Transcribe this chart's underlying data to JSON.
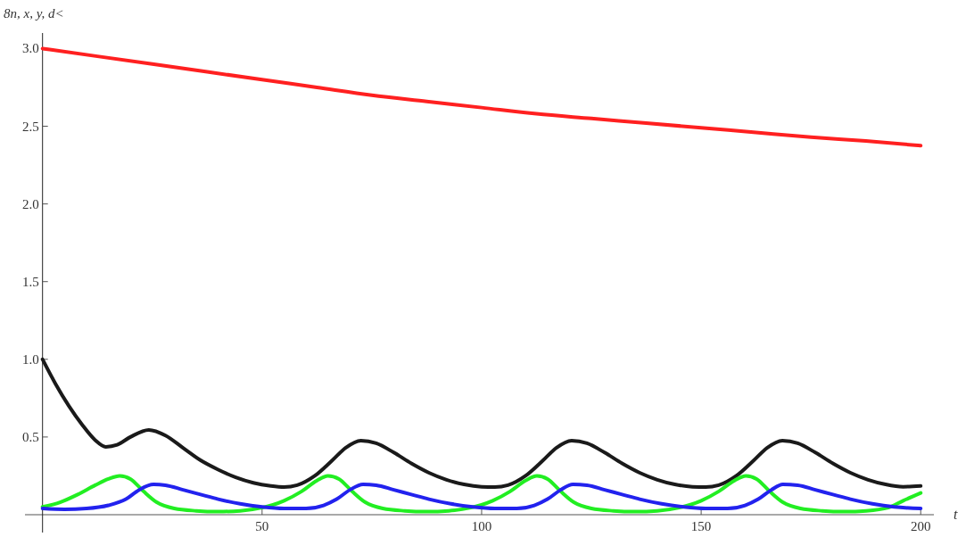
{
  "chart_data": {
    "type": "line",
    "xlabel": "t",
    "ylabel": "8n, x, y, d<",
    "xlim": [
      -4,
      203
    ],
    "ylim": [
      0,
      3.1
    ],
    "xticks": [
      50,
      100,
      150,
      200
    ],
    "yticks": [
      {
        "value": 0.5,
        "label": "0.5"
      },
      {
        "value": 1,
        "label": "1.0"
      },
      {
        "value": 1.5,
        "label": "1.5"
      },
      {
        "value": 2,
        "label": "2.0"
      },
      {
        "value": 2.5,
        "label": "2.5"
      },
      {
        "value": 3,
        "label": "3.0"
      }
    ],
    "grid": false,
    "series": [
      {
        "color": "#ff2020",
        "x": [
          0,
          12.5,
          25,
          37.5,
          50,
          62.5,
          75,
          87.5,
          100,
          112.5,
          125,
          137.5,
          150,
          162.5,
          175,
          187.5,
          200
        ],
        "values": [
          3.0,
          2.95,
          2.9,
          2.85,
          2.8,
          2.75,
          2.7,
          2.66,
          2.62,
          2.58,
          2.55,
          2.52,
          2.49,
          2.46,
          2.43,
          2.405,
          2.375
        ]
      },
      {
        "color": "#1a1a1a",
        "x": [
          0,
          3,
          6,
          9,
          12,
          14.4,
          17,
          20,
          24.2,
          28,
          32,
          36,
          40,
          44,
          48,
          52,
          55,
          58,
          62,
          66,
          69,
          72.5,
          76,
          80,
          84,
          88,
          92,
          96,
          100,
          103,
          106,
          110,
          114,
          117,
          120.5,
          124,
          128,
          132,
          136,
          140,
          144,
          148,
          151,
          154,
          158,
          162,
          165,
          168.5,
          172,
          176,
          180,
          184,
          188,
          192,
          196,
          200
        ],
        "values": [
          1.0,
          0.84,
          0.7,
          0.58,
          0.48,
          0.437,
          0.45,
          0.5,
          0.546,
          0.51,
          0.43,
          0.35,
          0.29,
          0.24,
          0.205,
          0.185,
          0.178,
          0.19,
          0.25,
          0.35,
          0.43,
          0.477,
          0.46,
          0.4,
          0.33,
          0.27,
          0.225,
          0.195,
          0.18,
          0.178,
          0.19,
          0.25,
          0.35,
          0.43,
          0.477,
          0.46,
          0.4,
          0.33,
          0.27,
          0.225,
          0.195,
          0.18,
          0.178,
          0.19,
          0.25,
          0.35,
          0.43,
          0.477,
          0.46,
          0.4,
          0.33,
          0.27,
          0.225,
          0.195,
          0.18,
          0.185
        ]
      },
      {
        "color": "#22ee22",
        "x": [
          0,
          4,
          8,
          12,
          15,
          17.6,
          20,
          23,
          26,
          30,
          35,
          40,
          45,
          50,
          55,
          59,
          62.5,
          65,
          67.5,
          70.5,
          73.5,
          77.5,
          82.5,
          87.5,
          92.5,
          97.5,
          102.5,
          106.5,
          110,
          112.6,
          115,
          118,
          121,
          125,
          130,
          135,
          140,
          145,
          150,
          154,
          157.6,
          160.2,
          162.6,
          165.6,
          168.6,
          172.6,
          177.6,
          182.6,
          187.6,
          192.6,
          196,
          200
        ],
        "values": [
          0.05,
          0.08,
          0.13,
          0.19,
          0.23,
          0.25,
          0.23,
          0.15,
          0.08,
          0.04,
          0.025,
          0.02,
          0.025,
          0.045,
          0.09,
          0.15,
          0.22,
          0.25,
          0.23,
          0.15,
          0.08,
          0.04,
          0.025,
          0.02,
          0.025,
          0.045,
          0.09,
          0.15,
          0.22,
          0.25,
          0.23,
          0.15,
          0.08,
          0.04,
          0.025,
          0.02,
          0.025,
          0.045,
          0.09,
          0.15,
          0.22,
          0.25,
          0.23,
          0.15,
          0.08,
          0.04,
          0.025,
          0.02,
          0.025,
          0.045,
          0.09,
          0.14
        ]
      },
      {
        "color": "#2222ee",
        "x": [
          0,
          5,
          10,
          15,
          19,
          22,
          25.3,
          28,
          32,
          36,
          40,
          45,
          50,
          55,
          60,
          64,
          67,
          70,
          73,
          76,
          80,
          84,
          88,
          93,
          98,
          103,
          108,
          112,
          115,
          118,
          120.8,
          124,
          128,
          132,
          136,
          141,
          146,
          151,
          156,
          160,
          163,
          166,
          168.6,
          172,
          176,
          180,
          184,
          189,
          194,
          200
        ],
        "values": [
          0.04,
          0.035,
          0.04,
          0.06,
          0.1,
          0.16,
          0.195,
          0.19,
          0.16,
          0.13,
          0.1,
          0.07,
          0.05,
          0.04,
          0.04,
          0.06,
          0.1,
          0.16,
          0.195,
          0.19,
          0.16,
          0.13,
          0.1,
          0.07,
          0.05,
          0.04,
          0.04,
          0.06,
          0.1,
          0.16,
          0.195,
          0.19,
          0.16,
          0.13,
          0.1,
          0.07,
          0.05,
          0.04,
          0.04,
          0.06,
          0.1,
          0.16,
          0.195,
          0.19,
          0.16,
          0.13,
          0.1,
          0.07,
          0.05,
          0.04
        ]
      }
    ]
  }
}
